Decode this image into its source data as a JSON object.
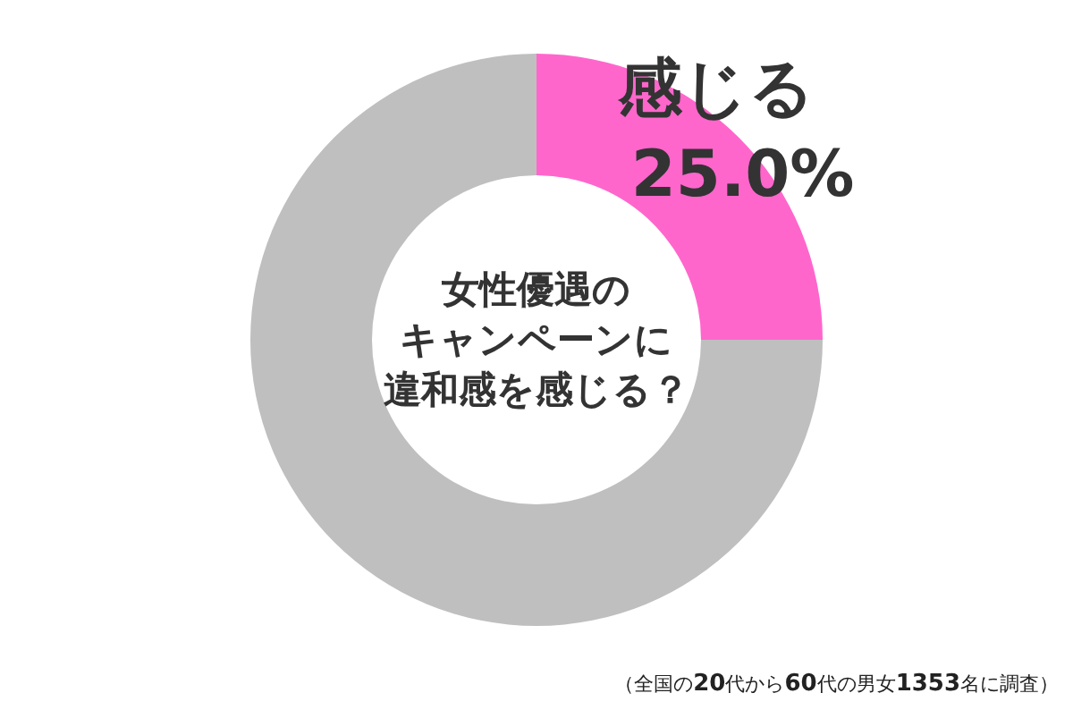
{
  "chart_data": {
    "type": "donut",
    "title": "女性優遇のキャンペーンに違和感を感じる？",
    "categories": [
      "感じる",
      null
    ],
    "values": [
      25.0,
      75.0
    ],
    "value_labels": [
      "25.0%",
      null
    ],
    "colors": [
      "#ff66cc",
      "#bfbfbf"
    ],
    "annotations": [
      "（全国の20代から60代の男女1353名に調査）"
    ]
  }
}
